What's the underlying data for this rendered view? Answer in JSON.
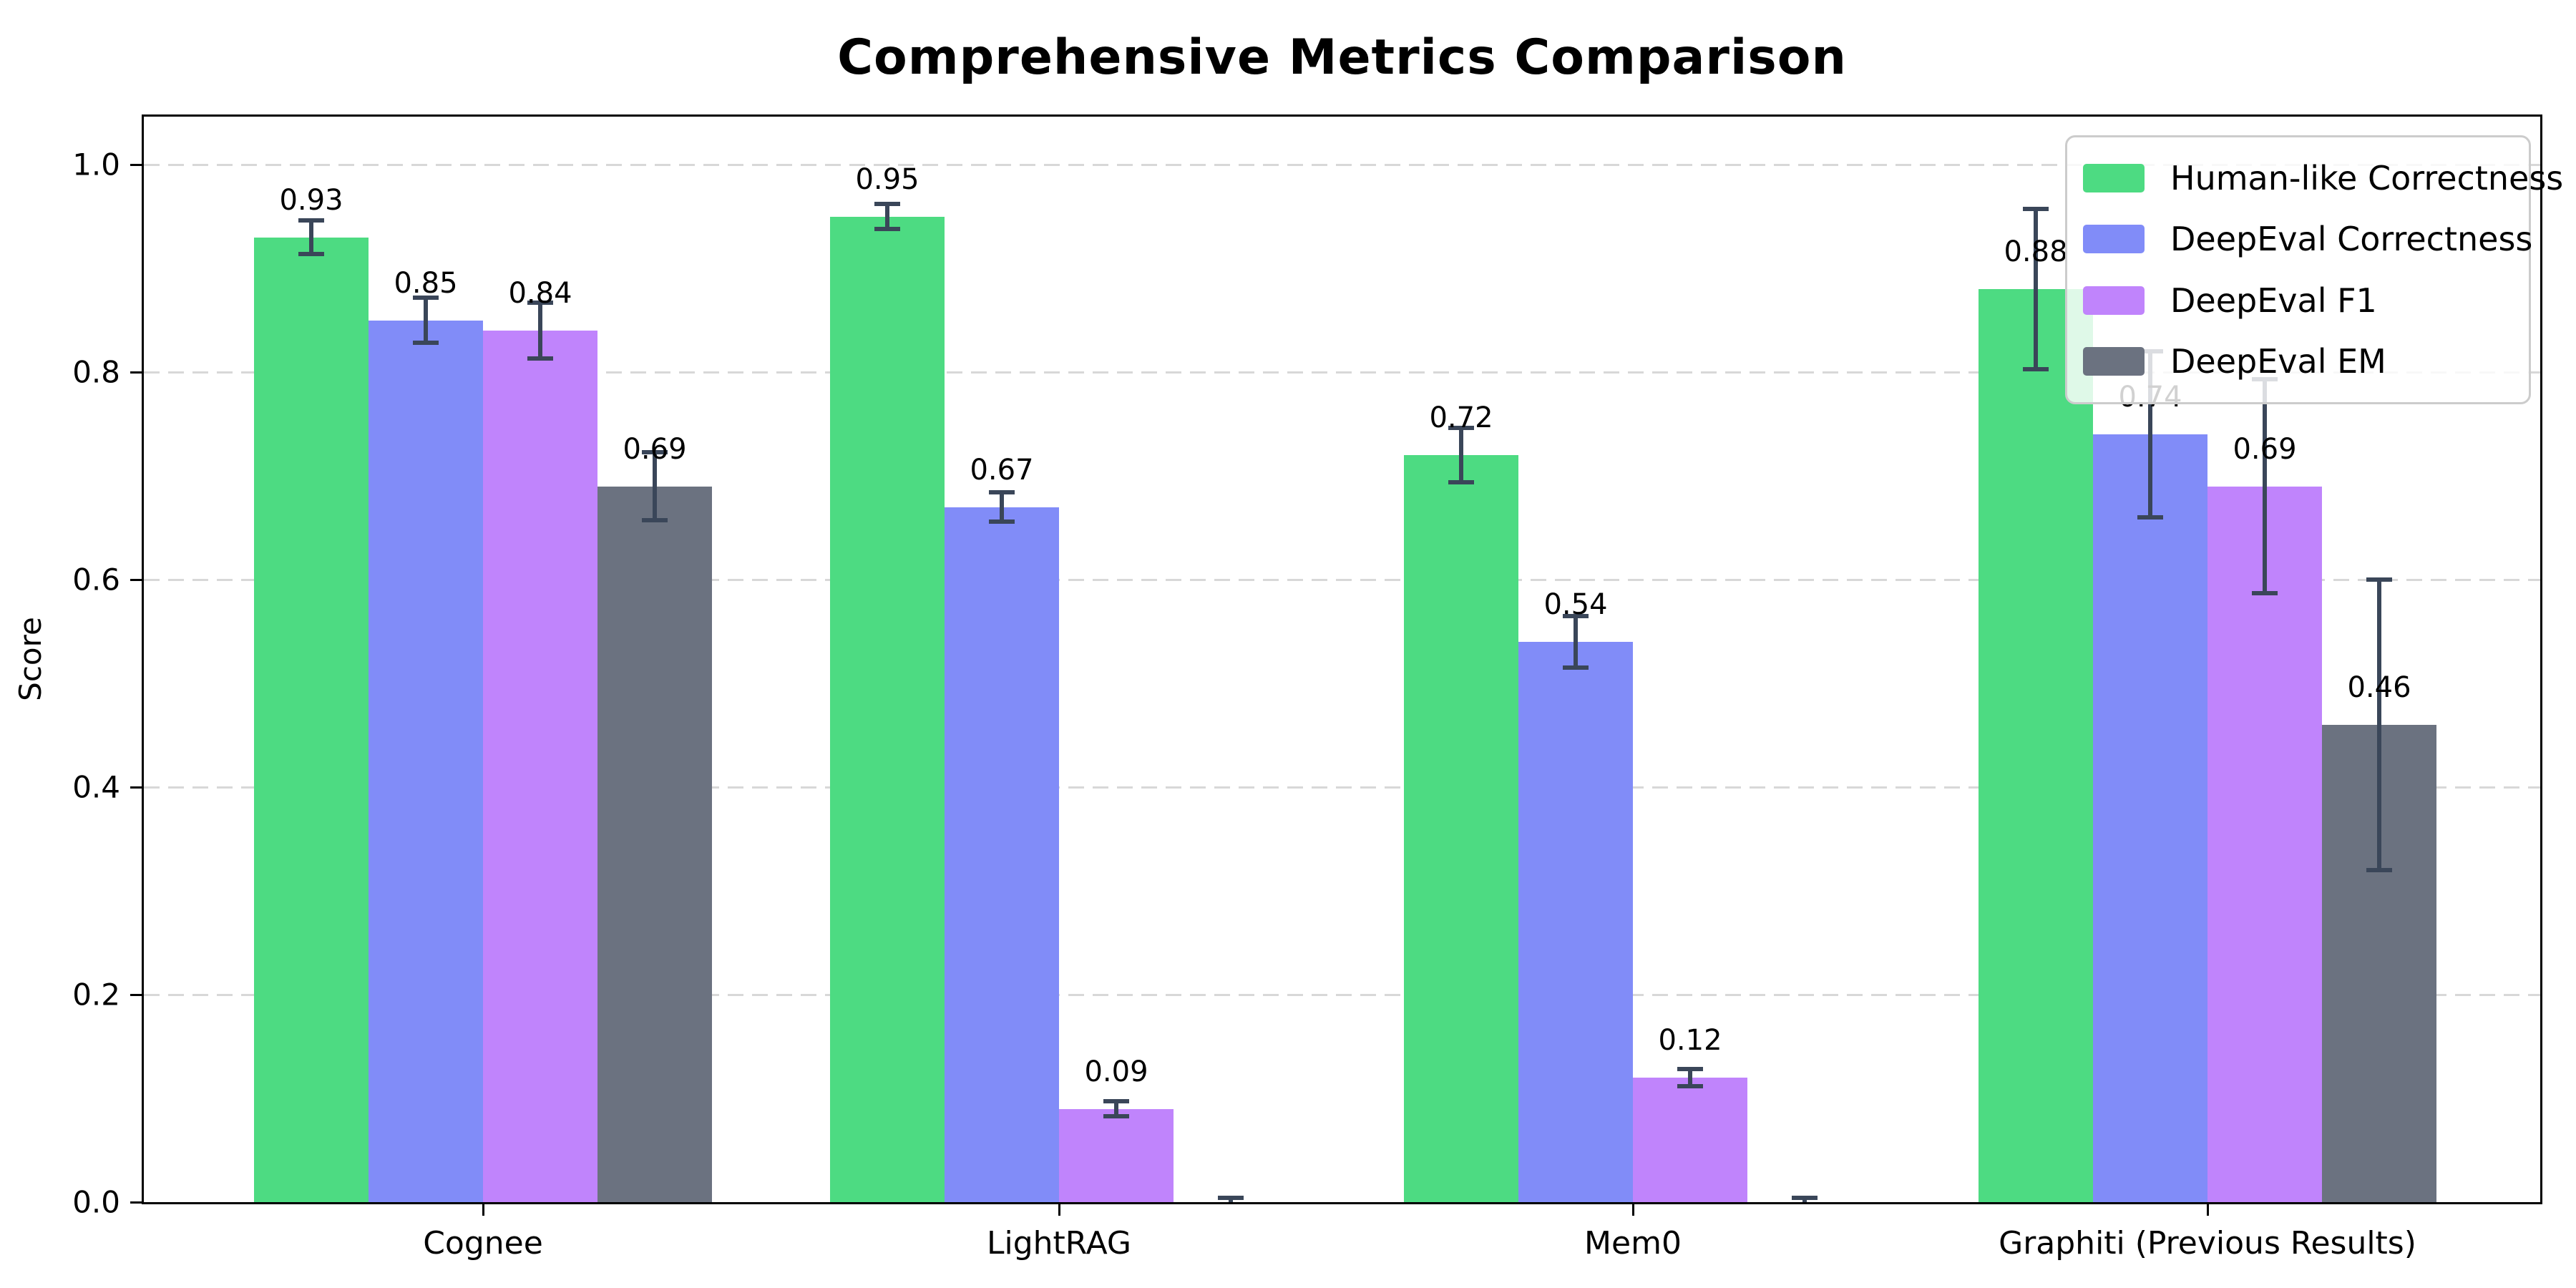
{
  "figure": {
    "title": "Comprehensive Metrics Comparison",
    "ylabel": "Score"
  },
  "chart_data": {
    "type": "bar",
    "title": "Comprehensive Metrics Comparison",
    "xlabel": "",
    "ylabel": "Score",
    "categories": [
      "Cognee",
      "LightRAG",
      "Mem0",
      "Graphiti (Previous Results)"
    ],
    "series": [
      {
        "name": "Human-like Correctness",
        "color": "#4ddb82",
        "values": [
          0.93,
          0.95,
          0.72,
          0.88
        ],
        "errors": [
          0.016,
          0.012,
          0.026,
          0.077
        ],
        "labels": [
          "0.93",
          "0.95",
          "0.72",
          "0.88"
        ]
      },
      {
        "name": "DeepEval Correctness",
        "color": "#818cf8",
        "values": [
          0.85,
          0.67,
          0.54,
          0.74
        ],
        "errors": [
          0.022,
          0.014,
          0.025,
          0.08
        ],
        "labels": [
          "0.85",
          "0.67",
          "0.54",
          "0.74"
        ]
      },
      {
        "name": "DeepEval F1",
        "color": "#c084fc",
        "values": [
          0.84,
          0.09,
          0.12,
          0.69
        ],
        "errors": [
          0.027,
          0.007,
          0.008,
          0.103
        ],
        "labels": [
          "0.84",
          "0.09",
          "0.12",
          "0.69"
        ]
      },
      {
        "name": "DeepEval EM",
        "color": "#6b7280",
        "values": [
          0.69,
          0.0,
          0.0,
          0.46
        ],
        "errors": [
          0.033,
          0.004,
          0.004,
          0.14
        ],
        "labels": [
          "0.69",
          "",
          "",
          "0.46"
        ]
      }
    ],
    "yticks": [
      "0.0",
      "0.2",
      "0.4",
      "0.6",
      "0.8",
      "1.0"
    ],
    "ytick_values": [
      0.0,
      0.2,
      0.4,
      0.6,
      0.8,
      1.0
    ],
    "ylim": [
      0,
      1.046
    ],
    "grid": "horizontal-dashed",
    "legend_position": "upper right",
    "error_bar_color": "#3a4659",
    "value_label_offset": 0.02
  }
}
